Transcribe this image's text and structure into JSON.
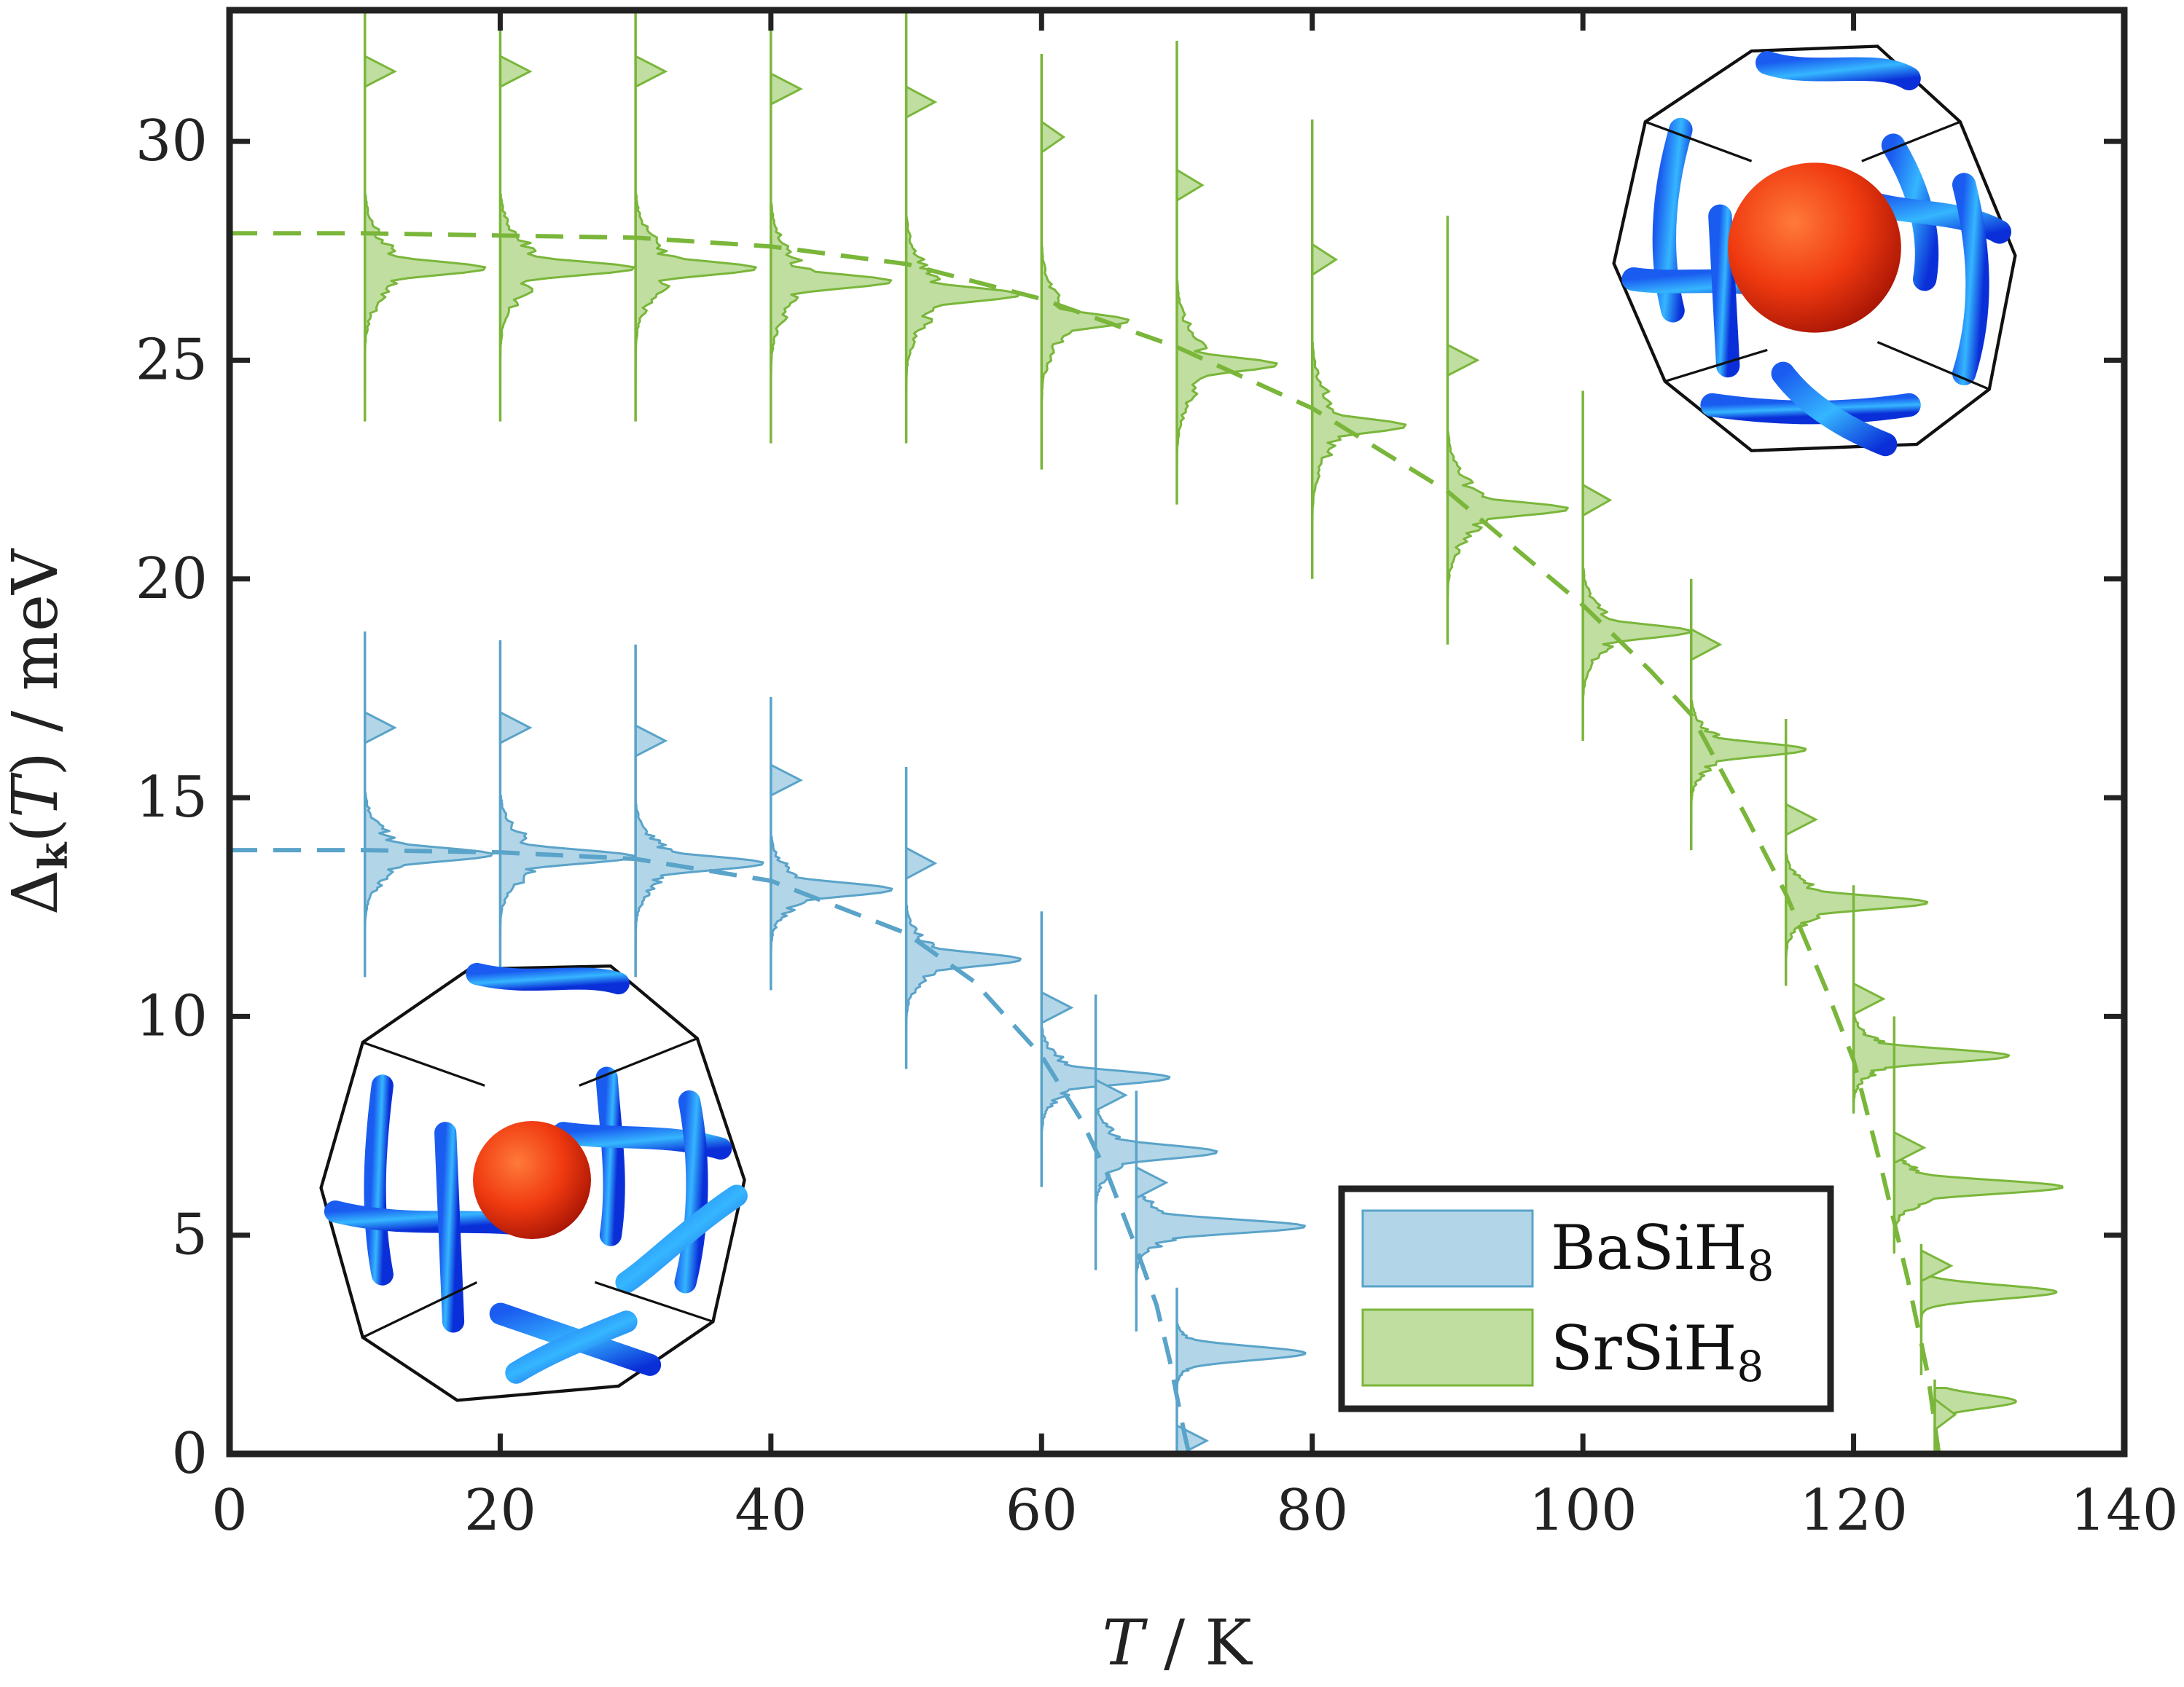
{
  "chart_data": {
    "type": "line",
    "xlabel": "T / K",
    "ylabel": "Δk(T) / meV",
    "xlim": [
      0,
      140
    ],
    "ylim": [
      0,
      33
    ],
    "x_ticks": [
      0,
      20,
      40,
      60,
      80,
      100,
      120,
      140
    ],
    "y_ticks": [
      0,
      5,
      10,
      15,
      20,
      25,
      30
    ],
    "grid": false,
    "legend_position": "bottom-right",
    "series": [
      {
        "name": "BaSiH8",
        "color": "#5aa3c9",
        "fill": "#b2d6e8",
        "gap_fit": {
          "x": [
            0,
            10,
            20,
            30,
            40,
            50,
            55,
            60,
            63,
            65,
            67,
            68.5,
            69.5,
            70.2,
            70.6,
            70.9
          ],
          "y": [
            13.8,
            13.8,
            13.75,
            13.6,
            13.1,
            11.9,
            10.8,
            9.1,
            7.6,
            6.3,
            4.7,
            3.4,
            2.1,
            1.0,
            0.4,
            0.0
          ]
        },
        "distributions": [
          {
            "T": 10,
            "top": 18.8,
            "bottom": 10.9,
            "peak": 13.7,
            "width": 9.5,
            "minor_peak": 16.6
          },
          {
            "T": 20,
            "top": 18.6,
            "bottom": 10.9,
            "peak": 13.65,
            "width": 10.0,
            "minor_peak": 16.6
          },
          {
            "T": 30,
            "top": 18.5,
            "bottom": 10.9,
            "peak": 13.5,
            "width": 9.5,
            "minor_peak": 16.3
          },
          {
            "T": 40,
            "top": 17.3,
            "bottom": 10.6,
            "peak": 12.9,
            "width": 9.0,
            "minor_peak": 15.4
          },
          {
            "T": 50,
            "top": 15.7,
            "bottom": 8.8,
            "peak": 11.3,
            "width": 8.5,
            "minor_peak": 13.5
          },
          {
            "T": 60,
            "top": 12.4,
            "bottom": 6.1,
            "peak": 8.6,
            "width": 9.5,
            "minor_peak": 10.2
          },
          {
            "T": 64,
            "top": 10.5,
            "bottom": 4.2,
            "peak": 6.9,
            "width": 9.0,
            "minor_peak": 8.2
          },
          {
            "T": 67,
            "top": 8.3,
            "bottom": 2.8,
            "peak": 5.2,
            "width": 12.5,
            "minor_peak": 6.2
          },
          {
            "T": 70,
            "top": 3.8,
            "bottom": 0.0,
            "peak": 2.3,
            "width": 9.5,
            "minor_peak": 0.3
          }
        ]
      },
      {
        "name": "SrSiH8",
        "color": "#7ab63a",
        "fill": "#c0dea0",
        "gap_fit": {
          "x": [
            0,
            10,
            20,
            30,
            40,
            50,
            60,
            70,
            80,
            90,
            95,
            100,
            105,
            108,
            112,
            115,
            118,
            120,
            122,
            124,
            125.5,
            126.3
          ],
          "y": [
            27.9,
            27.9,
            27.85,
            27.8,
            27.6,
            27.2,
            26.4,
            25.3,
            23.9,
            22.0,
            20.7,
            19.4,
            17.9,
            16.9,
            14.6,
            12.8,
            10.6,
            9.0,
            6.6,
            4.0,
            1.8,
            0.0
          ]
        },
        "distributions": [
          {
            "T": 10,
            "top": 33.0,
            "bottom": 23.6,
            "peak": 27.1,
            "width": 9.0,
            "minor_peak": 31.6
          },
          {
            "T": 20,
            "top": 33.0,
            "bottom": 23.6,
            "peak": 27.1,
            "width": 10.0,
            "minor_peak": 31.6
          },
          {
            "T": 30,
            "top": 33.0,
            "bottom": 23.6,
            "peak": 27.1,
            "width": 9.0,
            "minor_peak": 31.6
          },
          {
            "T": 40,
            "top": 33.0,
            "bottom": 23.1,
            "peak": 26.8,
            "width": 9.0,
            "minor_peak": 31.2
          },
          {
            "T": 50,
            "top": 33.0,
            "bottom": 23.1,
            "peak": 26.5,
            "width": 8.5,
            "minor_peak": 30.9
          },
          {
            "T": 60,
            "top": 32.0,
            "bottom": 22.5,
            "peak": 25.9,
            "width": 6.5,
            "minor_peak": 30.1
          },
          {
            "T": 70,
            "top": 32.3,
            "bottom": 21.7,
            "peak": 24.9,
            "width": 7.5,
            "minor_peak": 29.0
          },
          {
            "T": 80,
            "top": 30.5,
            "bottom": 20.0,
            "peak": 23.5,
            "width": 7.0,
            "minor_peak": 27.3
          },
          {
            "T": 90,
            "top": 28.3,
            "bottom": 18.5,
            "peak": 21.6,
            "width": 9.0,
            "minor_peak": 25.0
          },
          {
            "T": 100,
            "top": 24.3,
            "bottom": 16.3,
            "peak": 18.8,
            "width": 8.0,
            "minor_peak": 21.8
          },
          {
            "T": 108,
            "top": 20.0,
            "bottom": 13.8,
            "peak": 16.1,
            "width": 8.5,
            "minor_peak": 18.5
          },
          {
            "T": 115,
            "top": 16.8,
            "bottom": 10.7,
            "peak": 12.6,
            "width": 10.5,
            "minor_peak": 14.5
          },
          {
            "T": 120,
            "top": 13.0,
            "bottom": 7.8,
            "peak": 9.1,
            "width": 11.5,
            "minor_peak": 10.4
          },
          {
            "T": 123,
            "top": 10.0,
            "bottom": 4.6,
            "peak": 6.1,
            "width": 12.5,
            "minor_peak": 7.0
          },
          {
            "T": 125,
            "top": 4.8,
            "bottom": 1.8,
            "peak": 3.7,
            "width": 10.0,
            "minor_peak": 4.3
          },
          {
            "T": 126,
            "top": 1.7,
            "bottom": 0.0,
            "peak": 1.2,
            "width": 6.0,
            "minor_peak": 0.9
          }
        ]
      }
    ]
  },
  "legend": {
    "items": [
      {
        "base": "BaSiH",
        "sub": "8"
      },
      {
        "base": "SrSiH",
        "sub": "8"
      }
    ]
  }
}
